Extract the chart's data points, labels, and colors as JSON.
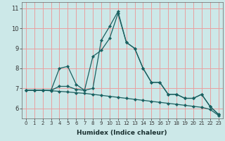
{
  "xlabel": "Humidex (Indice chaleur)",
  "background_color": "#cce8e8",
  "grid_color": "#e8a0a0",
  "line_color": "#1a6060",
  "xlim": [
    -0.5,
    23.5
  ],
  "ylim": [
    5.5,
    11.3
  ],
  "xticks": [
    0,
    1,
    2,
    3,
    4,
    5,
    6,
    7,
    8,
    9,
    10,
    11,
    12,
    13,
    14,
    15,
    16,
    17,
    18,
    19,
    20,
    21,
    22,
    23
  ],
  "yticks": [
    6,
    7,
    8,
    9,
    10,
    11
  ],
  "line1_x": [
    0,
    1,
    2,
    3,
    4,
    5,
    6,
    7,
    8,
    9,
    10,
    11,
    12,
    13,
    14,
    15,
    16,
    17,
    18,
    19,
    20,
    21,
    22,
    23
  ],
  "line1_y": [
    6.9,
    6.9,
    6.9,
    6.9,
    8.0,
    8.1,
    7.2,
    6.9,
    8.6,
    8.9,
    9.5,
    10.75,
    9.3,
    9.0,
    8.0,
    7.3,
    7.3,
    6.7,
    6.7,
    6.5,
    6.5,
    6.7,
    6.1,
    5.7
  ],
  "line2_x": [
    0,
    1,
    2,
    3,
    4,
    5,
    6,
    7,
    8,
    9,
    10,
    11,
    12,
    13,
    14,
    15,
    16,
    17,
    18,
    19,
    20,
    21,
    22,
    23
  ],
  "line2_y": [
    6.9,
    6.9,
    6.9,
    6.9,
    7.1,
    7.1,
    6.95,
    6.9,
    7.0,
    9.4,
    10.1,
    10.85,
    9.3,
    9.0,
    8.0,
    7.3,
    7.3,
    6.7,
    6.7,
    6.5,
    6.5,
    6.7,
    6.1,
    5.7
  ],
  "line3_x": [
    0,
    1,
    2,
    3,
    4,
    5,
    6,
    7,
    8,
    9,
    10,
    11,
    12,
    13,
    14,
    15,
    16,
    17,
    18,
    19,
    20,
    21,
    22,
    23
  ],
  "line3_y": [
    6.9,
    6.9,
    6.9,
    6.88,
    6.85,
    6.82,
    6.78,
    6.75,
    6.7,
    6.65,
    6.6,
    6.55,
    6.5,
    6.45,
    6.4,
    6.35,
    6.3,
    6.25,
    6.2,
    6.15,
    6.1,
    6.05,
    5.95,
    5.65
  ],
  "xlabel_fontsize": 6.5,
  "tick_fontsize_x": 5,
  "tick_fontsize_y": 6
}
